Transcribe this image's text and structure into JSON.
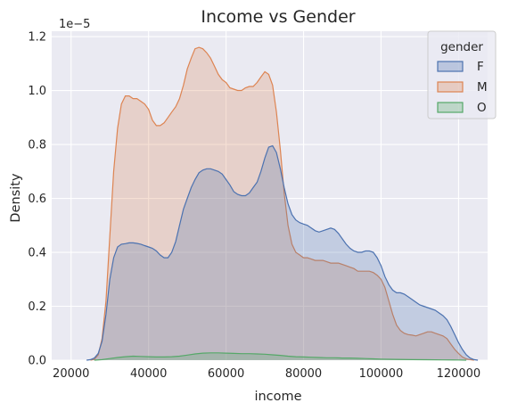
{
  "chart_data": {
    "type": "area",
    "title": "Income vs Gender",
    "xlabel": "income",
    "ylabel": "Density",
    "y_scale_label": "1e−5",
    "xlim": [
      15000,
      127500
    ],
    "ylim": [
      0,
      1.22
    ],
    "x_ticks": [
      20000,
      40000,
      60000,
      80000,
      100000,
      120000
    ],
    "x_tick_labels": [
      "20000",
      "40000",
      "60000",
      "80000",
      "100000",
      "120000"
    ],
    "y_ticks": [
      0,
      0.2,
      0.4,
      0.6,
      0.8,
      1.0,
      1.2
    ],
    "y_tick_labels": [
      "0.0",
      "0.2",
      "0.4",
      "0.6",
      "0.8",
      "1.0",
      "1.2"
    ],
    "grid": true,
    "legend": {
      "title": "gender",
      "placement": "top-right"
    },
    "series": [
      {
        "name": "M",
        "color": "#dd8452",
        "points": [
          [
            25000,
            0
          ],
          [
            26000,
            0.003
          ],
          [
            27000,
            0.02
          ],
          [
            28000,
            0.08
          ],
          [
            29000,
            0.22
          ],
          [
            30000,
            0.46
          ],
          [
            31000,
            0.7
          ],
          [
            32000,
            0.86
          ],
          [
            33000,
            0.95
          ],
          [
            34000,
            0.98
          ],
          [
            35000,
            0.98
          ],
          [
            36000,
            0.97
          ],
          [
            37000,
            0.97
          ],
          [
            38000,
            0.96
          ],
          [
            39000,
            0.95
          ],
          [
            40000,
            0.93
          ],
          [
            41000,
            0.89
          ],
          [
            42000,
            0.87
          ],
          [
            43000,
            0.87
          ],
          [
            44000,
            0.88
          ],
          [
            45000,
            0.9
          ],
          [
            46000,
            0.92
          ],
          [
            47000,
            0.94
          ],
          [
            48000,
            0.97
          ],
          [
            49000,
            1.02
          ],
          [
            50000,
            1.08
          ],
          [
            51000,
            1.12
          ],
          [
            52000,
            1.155
          ],
          [
            53000,
            1.16
          ],
          [
            54000,
            1.155
          ],
          [
            55000,
            1.14
          ],
          [
            56000,
            1.12
          ],
          [
            57000,
            1.09
          ],
          [
            58000,
            1.06
          ],
          [
            59000,
            1.04
          ],
          [
            60000,
            1.03
          ],
          [
            61000,
            1.01
          ],
          [
            62000,
            1.005
          ],
          [
            63000,
            1.0
          ],
          [
            64000,
            1.0
          ],
          [
            65000,
            1.01
          ],
          [
            66000,
            1.015
          ],
          [
            67000,
            1.015
          ],
          [
            68000,
            1.03
          ],
          [
            69000,
            1.05
          ],
          [
            70000,
            1.07
          ],
          [
            71000,
            1.06
          ],
          [
            72000,
            1.02
          ],
          [
            73000,
            0.92
          ],
          [
            74000,
            0.78
          ],
          [
            75000,
            0.62
          ],
          [
            76000,
            0.5
          ],
          [
            77000,
            0.43
          ],
          [
            78000,
            0.4
          ],
          [
            79000,
            0.39
          ],
          [
            80000,
            0.38
          ],
          [
            81000,
            0.38
          ],
          [
            82000,
            0.375
          ],
          [
            83000,
            0.37
          ],
          [
            84000,
            0.37
          ],
          [
            85000,
            0.37
          ],
          [
            86000,
            0.365
          ],
          [
            87000,
            0.36
          ],
          [
            88000,
            0.36
          ],
          [
            89000,
            0.36
          ],
          [
            90000,
            0.355
          ],
          [
            91000,
            0.35
          ],
          [
            92000,
            0.345
          ],
          [
            93000,
            0.34
          ],
          [
            94000,
            0.33
          ],
          [
            95000,
            0.33
          ],
          [
            96000,
            0.33
          ],
          [
            97000,
            0.33
          ],
          [
            98000,
            0.325
          ],
          [
            99000,
            0.315
          ],
          [
            100000,
            0.3
          ],
          [
            101000,
            0.27
          ],
          [
            102000,
            0.22
          ],
          [
            103000,
            0.17
          ],
          [
            104000,
            0.13
          ],
          [
            105000,
            0.11
          ],
          [
            106000,
            0.1
          ],
          [
            107000,
            0.095
          ],
          [
            108000,
            0.093
          ],
          [
            109000,
            0.09
          ],
          [
            110000,
            0.095
          ],
          [
            111000,
            0.1
          ],
          [
            112000,
            0.105
          ],
          [
            113000,
            0.105
          ],
          [
            114000,
            0.1
          ],
          [
            115000,
            0.095
          ],
          [
            116000,
            0.09
          ],
          [
            117000,
            0.08
          ],
          [
            118000,
            0.06
          ],
          [
            119000,
            0.04
          ],
          [
            120000,
            0.025
          ],
          [
            121000,
            0.012
          ],
          [
            122000,
            0.005
          ],
          [
            123000,
            0.002
          ],
          [
            124000,
            0
          ]
        ]
      },
      {
        "name": "F",
        "color": "#4c72b0",
        "points": [
          [
            24000,
            0
          ],
          [
            25000,
            0.002
          ],
          [
            26000,
            0.008
          ],
          [
            27000,
            0.025
          ],
          [
            28000,
            0.07
          ],
          [
            29000,
            0.17
          ],
          [
            30000,
            0.3
          ],
          [
            31000,
            0.38
          ],
          [
            32000,
            0.42
          ],
          [
            33000,
            0.43
          ],
          [
            34000,
            0.432
          ],
          [
            35000,
            0.435
          ],
          [
            36000,
            0.435
          ],
          [
            37000,
            0.433
          ],
          [
            38000,
            0.43
          ],
          [
            39000,
            0.425
          ],
          [
            40000,
            0.42
          ],
          [
            41000,
            0.415
          ],
          [
            42000,
            0.405
          ],
          [
            43000,
            0.39
          ],
          [
            44000,
            0.38
          ],
          [
            45000,
            0.38
          ],
          [
            46000,
            0.4
          ],
          [
            47000,
            0.44
          ],
          [
            48000,
            0.5
          ],
          [
            49000,
            0.56
          ],
          [
            50000,
            0.6
          ],
          [
            51000,
            0.64
          ],
          [
            52000,
            0.67
          ],
          [
            53000,
            0.695
          ],
          [
            54000,
            0.705
          ],
          [
            55000,
            0.71
          ],
          [
            56000,
            0.71
          ],
          [
            57000,
            0.705
          ],
          [
            58000,
            0.7
          ],
          [
            59000,
            0.69
          ],
          [
            60000,
            0.67
          ],
          [
            61000,
            0.65
          ],
          [
            62000,
            0.625
          ],
          [
            63000,
            0.615
          ],
          [
            64000,
            0.61
          ],
          [
            65000,
            0.61
          ],
          [
            66000,
            0.62
          ],
          [
            67000,
            0.64
          ],
          [
            68000,
            0.66
          ],
          [
            69000,
            0.7
          ],
          [
            70000,
            0.75
          ],
          [
            71000,
            0.79
          ],
          [
            72000,
            0.795
          ],
          [
            73000,
            0.77
          ],
          [
            74000,
            0.71
          ],
          [
            75000,
            0.64
          ],
          [
            76000,
            0.58
          ],
          [
            77000,
            0.54
          ],
          [
            78000,
            0.52
          ],
          [
            79000,
            0.51
          ],
          [
            80000,
            0.505
          ],
          [
            81000,
            0.5
          ],
          [
            82000,
            0.49
          ],
          [
            83000,
            0.48
          ],
          [
            84000,
            0.475
          ],
          [
            85000,
            0.48
          ],
          [
            86000,
            0.485
          ],
          [
            87000,
            0.49
          ],
          [
            88000,
            0.485
          ],
          [
            89000,
            0.47
          ],
          [
            90000,
            0.45
          ],
          [
            91000,
            0.43
          ],
          [
            92000,
            0.415
          ],
          [
            93000,
            0.405
          ],
          [
            94000,
            0.4
          ],
          [
            95000,
            0.4
          ],
          [
            96000,
            0.405
          ],
          [
            97000,
            0.405
          ],
          [
            98000,
            0.4
          ],
          [
            99000,
            0.38
          ],
          [
            100000,
            0.35
          ],
          [
            101000,
            0.31
          ],
          [
            102000,
            0.28
          ],
          [
            103000,
            0.26
          ],
          [
            104000,
            0.25
          ],
          [
            105000,
            0.25
          ],
          [
            106000,
            0.245
          ],
          [
            107000,
            0.235
          ],
          [
            108000,
            0.225
          ],
          [
            109000,
            0.215
          ],
          [
            110000,
            0.205
          ],
          [
            111000,
            0.2
          ],
          [
            112000,
            0.195
          ],
          [
            113000,
            0.19
          ],
          [
            114000,
            0.185
          ],
          [
            115000,
            0.175
          ],
          [
            116000,
            0.165
          ],
          [
            117000,
            0.15
          ],
          [
            118000,
            0.125
          ],
          [
            119000,
            0.095
          ],
          [
            120000,
            0.065
          ],
          [
            121000,
            0.04
          ],
          [
            122000,
            0.02
          ],
          [
            123000,
            0.008
          ],
          [
            124000,
            0.002
          ],
          [
            125000,
            0
          ]
        ]
      },
      {
        "name": "O",
        "color": "#55a868",
        "points": [
          [
            26000,
            0
          ],
          [
            28000,
            0.002
          ],
          [
            30000,
            0.006
          ],
          [
            32000,
            0.01
          ],
          [
            34000,
            0.013
          ],
          [
            36000,
            0.015
          ],
          [
            38000,
            0.014
          ],
          [
            40000,
            0.013
          ],
          [
            42000,
            0.012
          ],
          [
            44000,
            0.012
          ],
          [
            46000,
            0.013
          ],
          [
            48000,
            0.015
          ],
          [
            50000,
            0.019
          ],
          [
            52000,
            0.023
          ],
          [
            54000,
            0.026
          ],
          [
            56000,
            0.027
          ],
          [
            58000,
            0.027
          ],
          [
            60000,
            0.026
          ],
          [
            62000,
            0.025
          ],
          [
            64000,
            0.024
          ],
          [
            66000,
            0.024
          ],
          [
            68000,
            0.023
          ],
          [
            70000,
            0.022
          ],
          [
            72000,
            0.02
          ],
          [
            74000,
            0.018
          ],
          [
            76000,
            0.015
          ],
          [
            78000,
            0.013
          ],
          [
            80000,
            0.012
          ],
          [
            82000,
            0.011
          ],
          [
            84000,
            0.01
          ],
          [
            86000,
            0.009
          ],
          [
            88000,
            0.009
          ],
          [
            90000,
            0.008
          ],
          [
            92000,
            0.008
          ],
          [
            94000,
            0.007
          ],
          [
            96000,
            0.006
          ],
          [
            98000,
            0.005
          ],
          [
            100000,
            0.004
          ],
          [
            104000,
            0.003
          ],
          [
            108000,
            0.002
          ],
          [
            112000,
            0.0015
          ],
          [
            116000,
            0.001
          ],
          [
            120000,
            0.0005
          ],
          [
            122000,
            0
          ]
        ]
      }
    ],
    "legend_order": [
      "F",
      "M",
      "O"
    ]
  }
}
